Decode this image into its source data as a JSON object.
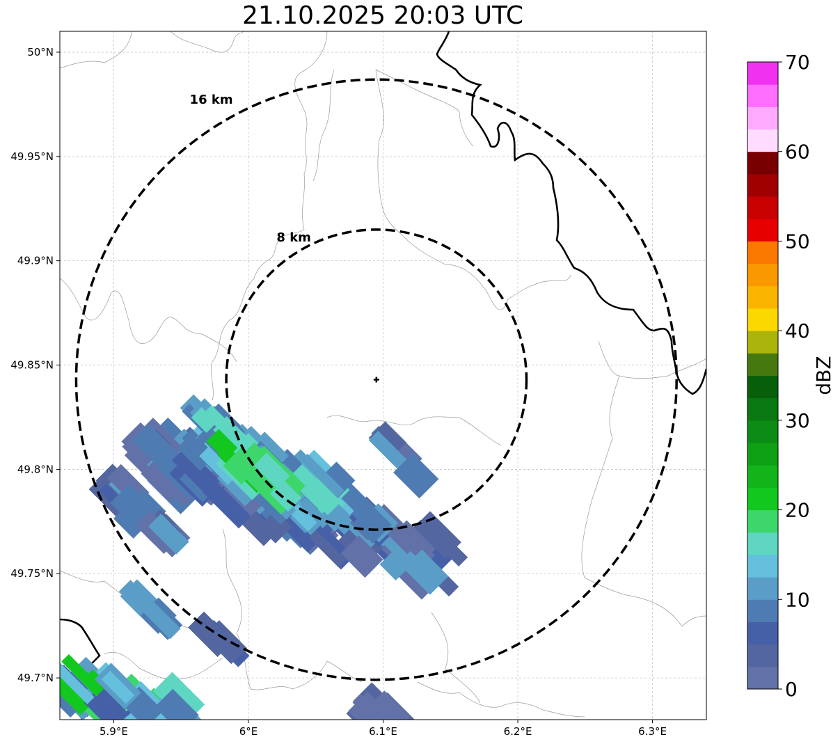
{
  "title": "21.10.2025 20:03 UTC",
  "map": {
    "lon_range": [
      5.86,
      6.34
    ],
    "lat_range": [
      49.68,
      50.01
    ],
    "lon_ticks": [
      {
        "value": 5.9,
        "label": "5.9°E"
      },
      {
        "value": 6.0,
        "label": "6°E"
      },
      {
        "value": 6.1,
        "label": "6.1°E"
      },
      {
        "value": 6.2,
        "label": "6.2°E"
      },
      {
        "value": 6.3,
        "label": "6.3°E"
      }
    ],
    "lat_ticks": [
      {
        "value": 50.0,
        "label": "50°N"
      },
      {
        "value": 49.95,
        "label": "49.95°N"
      },
      {
        "value": 49.9,
        "label": "49.9°N"
      },
      {
        "value": 49.85,
        "label": "49.85°N"
      },
      {
        "value": 49.8,
        "label": "49.8°N"
      },
      {
        "value": 49.75,
        "label": "49.75°N"
      },
      {
        "value": 49.7,
        "label": "49.7°N"
      }
    ],
    "grid": true,
    "radar_site": {
      "lon": 6.095,
      "lat": 49.843
    },
    "range_rings": [
      {
        "label": "8 km",
        "radius_km": 8
      },
      {
        "label": "16 km",
        "radius_km": 16
      }
    ]
  },
  "colorbar": {
    "label": "dBZ",
    "ticks": [
      "0",
      "10",
      "20",
      "30",
      "40",
      "50",
      "60",
      "70"
    ],
    "min": 0,
    "max": 70,
    "step": 2.5,
    "colors": [
      "#6272a8",
      "#5466a0",
      "#4660a8",
      "#4e7cb2",
      "#5a9ec8",
      "#64c0dc",
      "#5ed6c2",
      "#3cd66a",
      "#12c81e",
      "#12b41a",
      "#0ea014",
      "#0c8c14",
      "#0a7810",
      "#075f0a",
      "#467810",
      "#aab40a",
      "#fad800",
      "#fab400",
      "#fa9800",
      "#fa7800",
      "#e60000",
      "#c80000",
      "#a00000",
      "#780000",
      "#ffdcff",
      "#ffaaff",
      "#ff6eff",
      "#f032f0"
    ]
  }
}
